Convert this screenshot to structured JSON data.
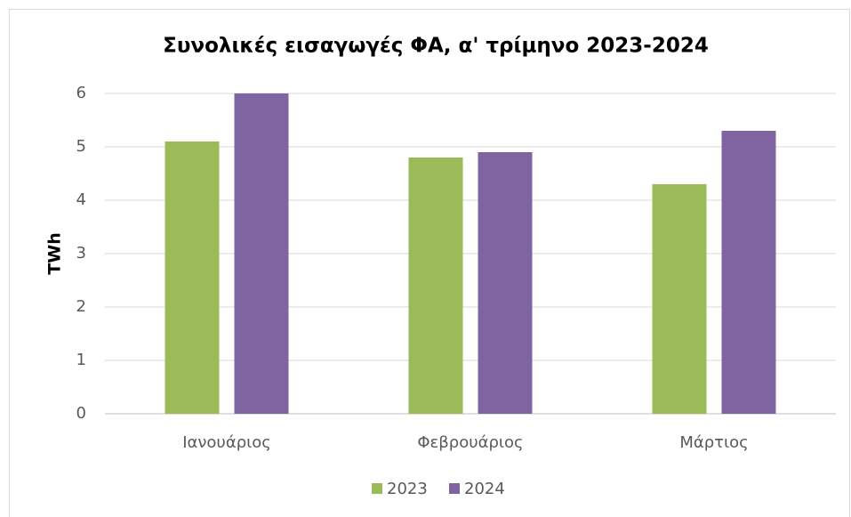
{
  "chart_data": {
    "type": "bar",
    "title": "Συνολικές εισαγωγές ΦΑ, α' τρίμηνο 2023-2024",
    "y_label": "TWh",
    "categories": [
      "Ιανουάριος",
      "Φεβρουάριος",
      "Μάρτιος"
    ],
    "series": [
      {
        "name": "2023",
        "color": "#9bbb59",
        "values": [
          5.1,
          4.8,
          4.3
        ]
      },
      {
        "name": "2024",
        "color": "#8064a2",
        "values": [
          6.0,
          4.9,
          5.3
        ]
      }
    ],
    "ylim": [
      0,
      6
    ],
    "yticks": [
      0,
      1,
      2,
      3,
      4,
      5,
      6
    ],
    "grid": true,
    "legend": "bottom"
  }
}
